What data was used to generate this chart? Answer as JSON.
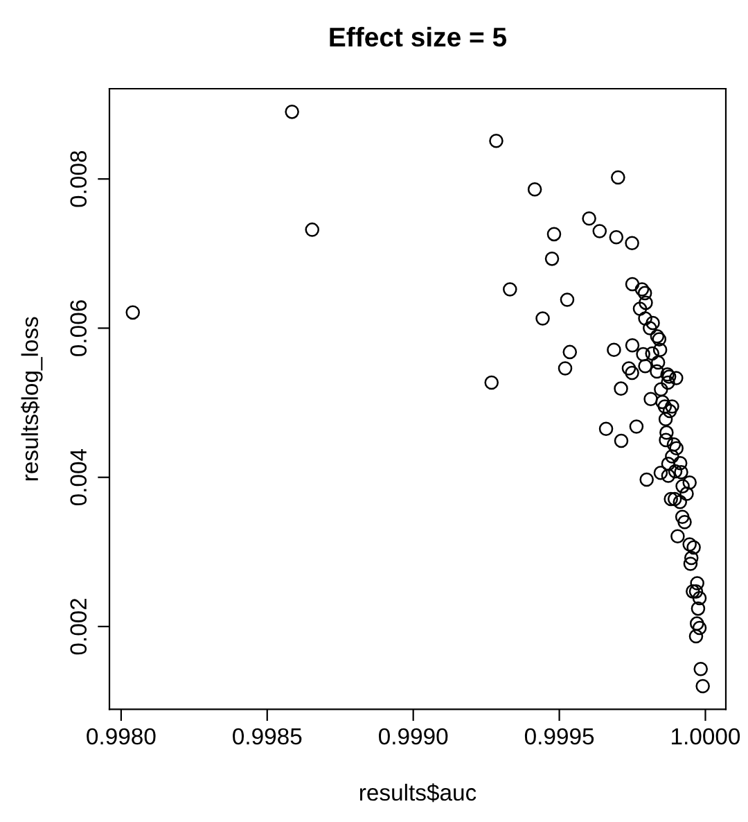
{
  "chart_data": {
    "type": "scatter",
    "title": "Effect size = 5",
    "xlabel": "results$auc",
    "ylabel": "results$log_loss",
    "xlim": [
      0.99796,
      1.00007
    ],
    "ylim": [
      0.00089,
      0.00921
    ],
    "xticks": [
      {
        "value": 0.998,
        "label": "0.9980"
      },
      {
        "value": 0.9985,
        "label": "0.9985"
      },
      {
        "value": 0.999,
        "label": "0.9990"
      },
      {
        "value": 0.9995,
        "label": "0.9995"
      },
      {
        "value": 1.0,
        "label": "1.0000"
      }
    ],
    "yticks": [
      0.002,
      0.004,
      0.006,
      0.008
    ],
    "marker": "circle",
    "grid": false,
    "series": [
      {
        "color": "#000000",
        "x": [
          0.99804,
          0.998585,
          0.998654,
          0.999284,
          0.999331,
          0.999268,
          0.999416,
          0.999701,
          0.999602,
          0.999482,
          0.999638,
          0.999695,
          0.999749,
          0.999475,
          0.999527,
          0.999443,
          0.999536,
          0.99952,
          0.999687,
          0.99975,
          0.999738,
          0.999749,
          0.999711,
          0.99975,
          0.999783,
          0.999793,
          0.999796,
          0.999776,
          0.999794,
          0.99982,
          0.99981,
          0.999835,
          0.999842,
          0.999845,
          0.999787,
          0.999818,
          0.999838,
          0.999794,
          0.999834,
          0.99987,
          0.999876,
          0.9999,
          0.999872,
          0.999848,
          0.999813,
          0.999853,
          0.999861,
          0.999886,
          0.999878,
          0.999864,
          0.99966,
          0.999764,
          0.999712,
          0.999867,
          0.999865,
          0.999892,
          0.999901,
          0.999886,
          0.999914,
          0.999873,
          0.999847,
          0.999873,
          0.999897,
          0.999917,
          0.999799,
          0.999946,
          0.999922,
          0.999936,
          0.999882,
          0.999895,
          0.999913,
          0.999921,
          0.999929,
          0.999905,
          0.999946,
          0.99996,
          0.999952,
          0.999949,
          0.999972,
          0.999957,
          0.999968,
          0.99998,
          0.999975,
          0.999971,
          0.99998,
          0.999968,
          0.999984,
          0.999991
        ],
        "values": [
          0.00621,
          0.0089,
          0.00732,
          0.00851,
          0.00652,
          0.00527,
          0.00786,
          0.00802,
          0.00747,
          0.00726,
          0.0073,
          0.00722,
          0.00714,
          0.00693,
          0.00638,
          0.00613,
          0.00568,
          0.00546,
          0.00571,
          0.00577,
          0.00546,
          0.0054,
          0.00519,
          0.00659,
          0.00652,
          0.00647,
          0.00634,
          0.00626,
          0.00613,
          0.00607,
          0.006,
          0.00589,
          0.00585,
          0.00571,
          0.00565,
          0.00566,
          0.00554,
          0.00549,
          0.00542,
          0.00538,
          0.00535,
          0.00533,
          0.00527,
          0.00518,
          0.00505,
          0.00501,
          0.00495,
          0.00495,
          0.00489,
          0.00478,
          0.00465,
          0.00468,
          0.00449,
          0.0046,
          0.0045,
          0.00444,
          0.00439,
          0.00428,
          0.00419,
          0.00418,
          0.00406,
          0.00402,
          0.00408,
          0.00407,
          0.00397,
          0.00393,
          0.00388,
          0.00378,
          0.00371,
          0.00371,
          0.00367,
          0.00347,
          0.0034,
          0.00321,
          0.0031,
          0.00306,
          0.00292,
          0.00284,
          0.00258,
          0.00247,
          0.00247,
          0.00238,
          0.00224,
          0.00204,
          0.00198,
          0.00187,
          0.00143,
          0.0012
        ]
      }
    ]
  }
}
